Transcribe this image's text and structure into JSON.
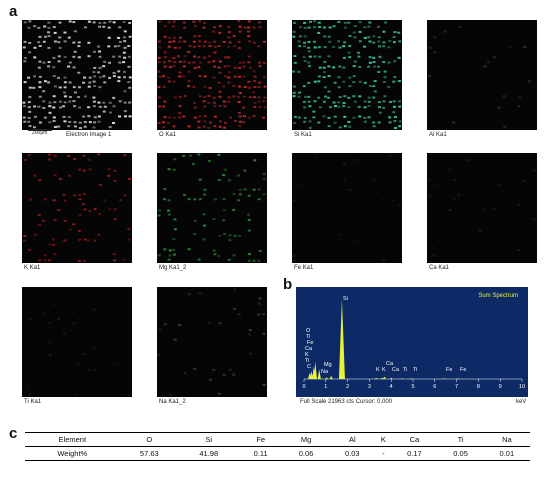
{
  "figure": {
    "panel_a": "a",
    "panel_b": "b",
    "panel_c": "c",
    "scale_label": "200μm",
    "maps": [
      {
        "caption": "Electron Image 1",
        "color": "#d9d9d9"
      },
      {
        "caption": "O Ka1",
        "color": "#c0262a"
      },
      {
        "caption": "Si Ka1",
        "color": "#3fc9a6"
      },
      {
        "caption": "Al Ka1",
        "color": "#1c3a1c"
      },
      {
        "caption": "K Ka1",
        "color": "#9a1a1a"
      },
      {
        "caption": "Mg Ka1_2",
        "color": "#2b8a3a"
      },
      {
        "caption": "Fe Ka1",
        "color": "#1a1a1a"
      },
      {
        "caption": "Ca Ka1",
        "color": "#1a1a1a"
      },
      {
        "caption": "Ti Ka1",
        "color": "#1a1a1a"
      },
      {
        "caption": "Na Ka1_2",
        "color": "#3a3a3a"
      }
    ]
  },
  "chart_data": {
    "type": "line",
    "title": "Sum Spectrum",
    "xlabel": "keV",
    "xlim": [
      0,
      10
    ],
    "x_ticks": [
      "0",
      "1",
      "2",
      "3",
      "4",
      "5",
      "6",
      "7",
      "8",
      "9",
      "10"
    ],
    "footer": "Full Scale 21963 cts Cursor: 0.000",
    "peaks": [
      {
        "label": "O",
        "x": 0.52,
        "rel_height": 0.22
      },
      {
        "label": "Ti",
        "x": 0.45,
        "rel_height": 0.16
      },
      {
        "label": "Fe",
        "x": 0.7,
        "rel_height": 0.12
      },
      {
        "label": "Ca",
        "x": 0.34,
        "rel_height": 0.1
      },
      {
        "label": "K",
        "x": 0.26,
        "rel_height": 0.08
      },
      {
        "label": "Ti",
        "x": 0.4,
        "rel_height": 0.06
      },
      {
        "label": "C",
        "x": 0.28,
        "rel_height": 0.04
      },
      {
        "label": "Na",
        "x": 1.04,
        "rel_height": 0.02
      },
      {
        "label": "Mg",
        "x": 1.25,
        "rel_height": 0.04
      },
      {
        "label": "Si",
        "x": 1.74,
        "rel_height": 1.0
      },
      {
        "label": "K",
        "x": 3.31,
        "rel_height": 0.015
      },
      {
        "label": "K",
        "x": 3.59,
        "rel_height": 0.015
      },
      {
        "label": "Ca",
        "x": 3.69,
        "rel_height": 0.03
      },
      {
        "label": "Ca",
        "x": 4.01,
        "rel_height": 0.015
      },
      {
        "label": "Ti",
        "x": 4.51,
        "rel_height": 0.01
      },
      {
        "label": "Ti",
        "x": 4.93,
        "rel_height": 0.01
      },
      {
        "label": "Fe",
        "x": 6.4,
        "rel_height": 0.01
      },
      {
        "label": "Fe",
        "x": 7.06,
        "rel_height": 0.01
      }
    ],
    "colors": {
      "background": "#0d2a66",
      "trace": "#e8f23a",
      "text": "#ffffff",
      "title": "#e8f23a"
    }
  },
  "table": {
    "headers": [
      "Element",
      "O",
      "Si",
      "Fe",
      "Mg",
      "Al",
      "K",
      "Ca",
      "Ti",
      "Na"
    ],
    "rows": [
      [
        "Weight%",
        "57.63",
        "41.98",
        "0.11",
        "0.06",
        "0.03",
        "-",
        "0.17",
        "0.05",
        "0.01"
      ]
    ]
  }
}
